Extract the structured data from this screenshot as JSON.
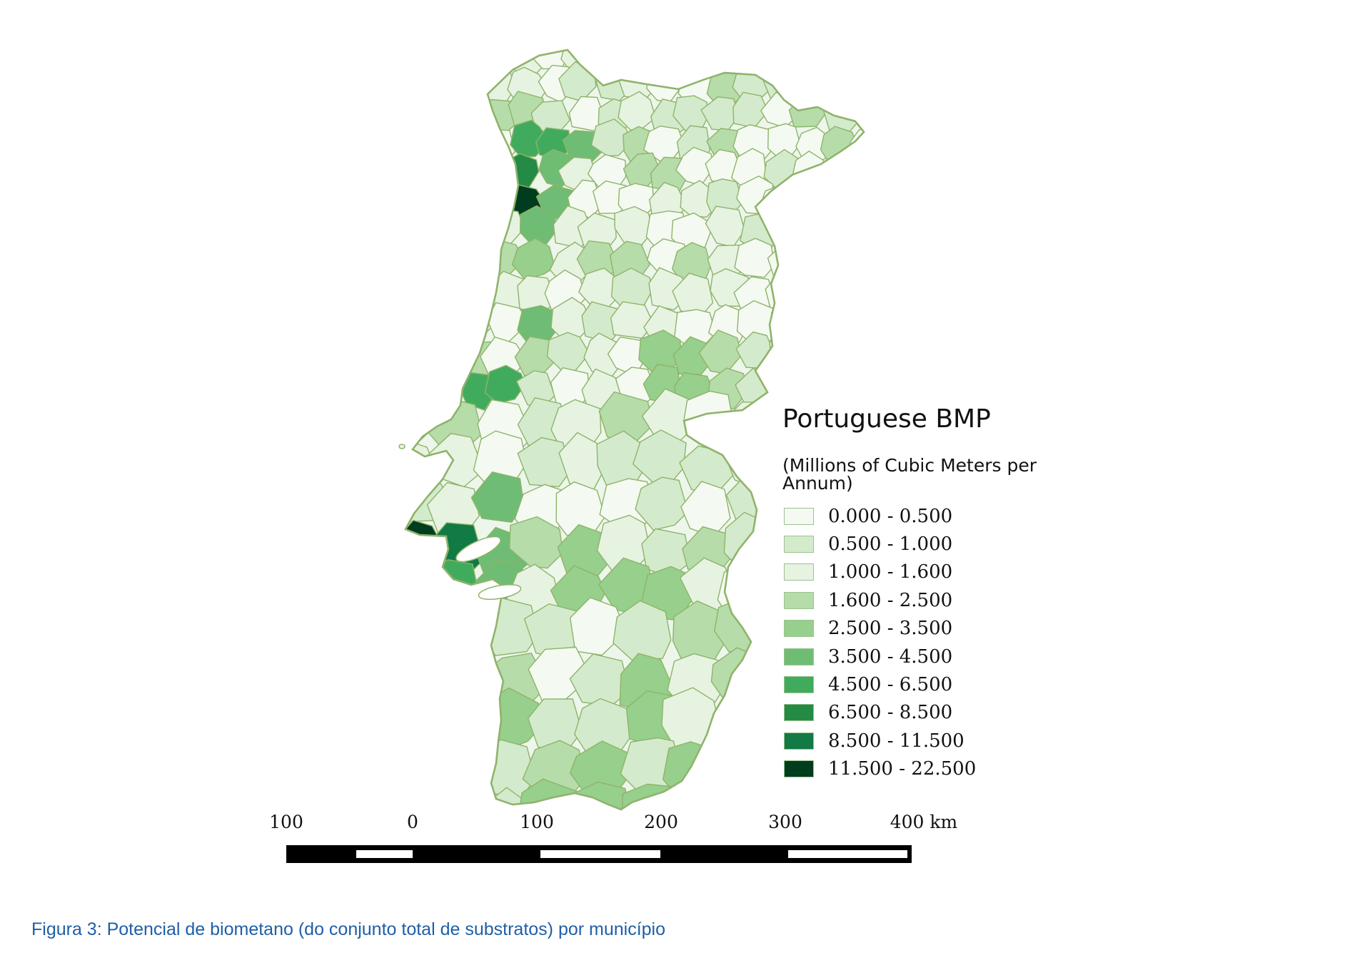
{
  "legend": {
    "title": "Portuguese BMP",
    "subtitle": "(Millions of Cubic Meters per Annum)",
    "classes": [
      {
        "label": "0.000 - 0.500",
        "color": "#f4faf1"
      },
      {
        "label": "0.500 - 1.000",
        "color": "#d3ebcc"
      },
      {
        "label": "1.000 - 1.600",
        "color": "#e6f3e1"
      },
      {
        "label": "1.600 - 2.500",
        "color": "#b6dca9"
      },
      {
        "label": "2.500 - 3.500",
        "color": "#97cf8c"
      },
      {
        "label": "3.500 - 4.500",
        "color": "#6fbd74"
      },
      {
        "label": "4.500 - 6.500",
        "color": "#41ab5d"
      },
      {
        "label": "6.500 - 8.500",
        "color": "#238b45"
      },
      {
        "label": "8.500 - 11.500",
        "color": "#117a45"
      },
      {
        "label": "11.500 - 22.500",
        "color": "#003c1e"
      }
    ]
  },
  "scale_bar": {
    "labels": [
      "100",
      "0",
      "100",
      "200",
      "300",
      "400 km"
    ]
  },
  "caption": "Figura 3: Potencial de biometano (do conjunto total de substratos) por município",
  "colors": {
    "region_border": "#8fb36b",
    "caption": "#1f5fa8"
  }
}
